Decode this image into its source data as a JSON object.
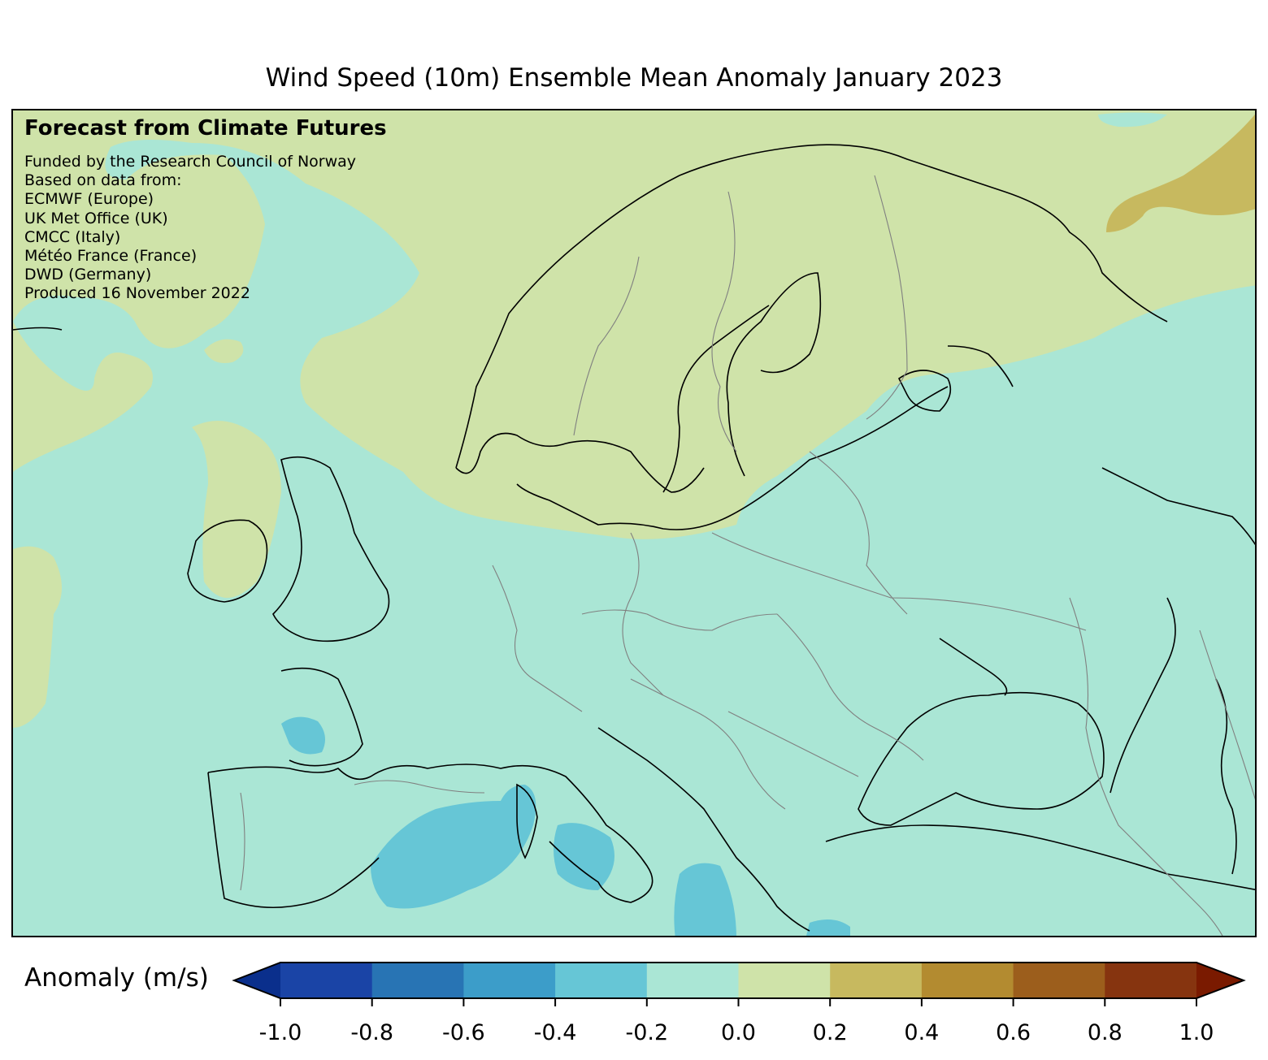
{
  "title": "Wind Speed (10m) Ensemble Mean Anomaly January 2023",
  "credit": {
    "heading": "Forecast from Climate Futures",
    "lines": [
      "Funded by the Research Council of Norway",
      "Based on data from:",
      "ECMWF (Europe)",
      "UK Met Office (UK)",
      "CMCC (Italy)",
      "Météo France (France)",
      "DWD (Germany)",
      "Produced 16 November 2022"
    ]
  },
  "colorbar": {
    "label": "Anomaly (m/s)",
    "ticks": [
      "-1.0",
      "-0.8",
      "-0.6",
      "-0.4",
      "-0.2",
      "0.0",
      "0.2",
      "0.4",
      "0.6",
      "0.8",
      "1.0"
    ],
    "under_color": "#0a2f8c",
    "over_color": "#7a1a00",
    "colors": [
      "#1a44a6",
      "#2874b4",
      "#3c9dc9",
      "#66c6d6",
      "#aae6d5",
      "#cfe3a9",
      "#c7b95f",
      "#b38b30",
      "#9c5e1c",
      "#86340f"
    ]
  },
  "map_colors": {
    "base": "#aae6d5",
    "positive_0_0.2": "#cfe3a9",
    "positive_0.2_0.4": "#c7b95f",
    "negative_-0.2_-0.4": "#66c6d6",
    "coastline": "#000000",
    "borders": "#808080"
  }
}
